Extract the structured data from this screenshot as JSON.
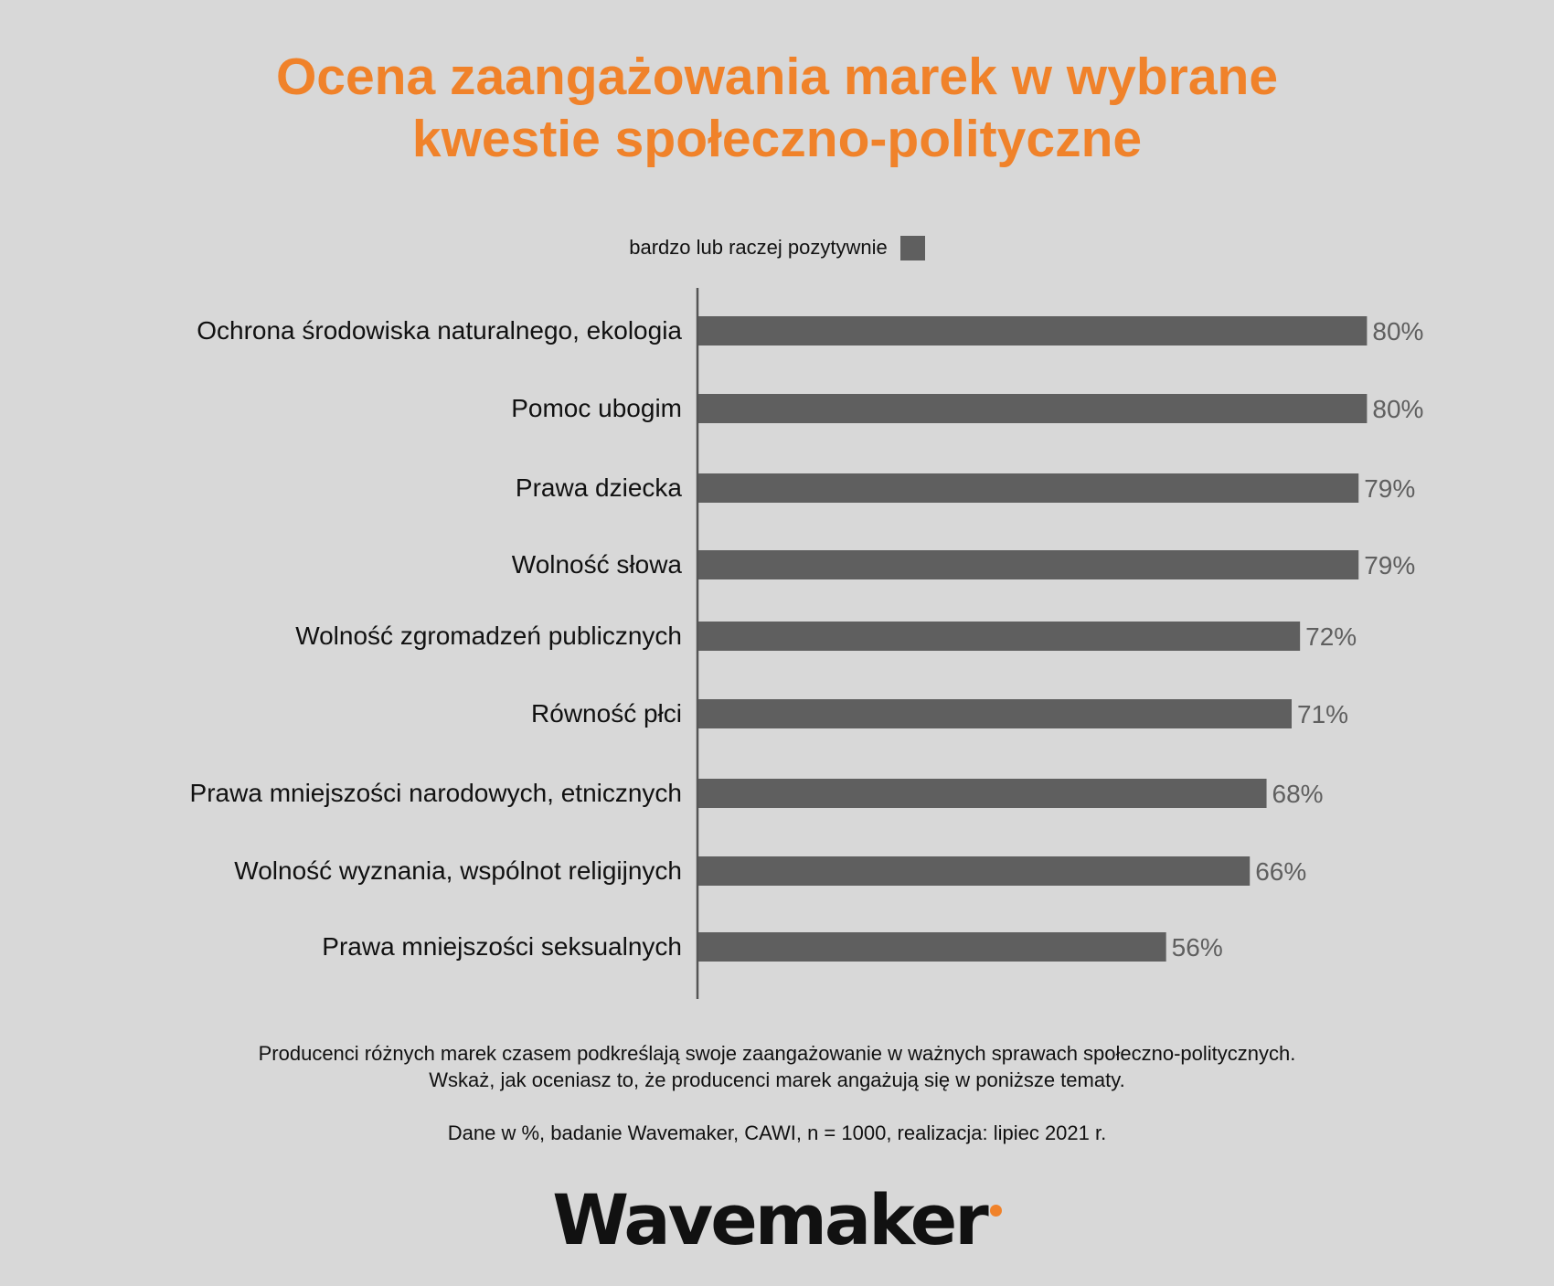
{
  "title": {
    "line1": "Ocena zaangażowania marek w wybrane",
    "line2": "kwestie społeczno-polityczne"
  },
  "legend": {
    "label": "bardzo lub raczej pozytywnie",
    "color": "#5f5f5f"
  },
  "colors": {
    "accent": "#f0822a",
    "bar": "#5f5f5f",
    "value_text": "#5f5f5f",
    "background": "#d8d8d8"
  },
  "chart_data": {
    "type": "bar",
    "orientation": "horizontal",
    "categories": [
      "Ochrona środowiska naturalnego, ekologia",
      "Pomoc ubogim",
      "Prawa dziecka",
      "Wolność słowa",
      "Wolność zgromadzeń publicznych",
      "Równość płci",
      "Prawa mniejszości narodowych, etnicznych",
      "Wolność wyznania, wspólnot religijnych",
      "Prawa mniejszości seksualnych"
    ],
    "series": [
      {
        "name": "bardzo lub raczej pozytywnie",
        "values": [
          80,
          80,
          79,
          79,
          72,
          71,
          68,
          66,
          56
        ]
      }
    ],
    "value_labels": [
      "80%",
      "80%",
      "79%",
      "79%",
      "72%",
      "71%",
      "68%",
      "66%",
      "56%"
    ],
    "unit": "%",
    "xlim": [
      0,
      100
    ],
    "grid": false,
    "legend_position": "top-center"
  },
  "footnote": {
    "line1": "Producenci różnych marek czasem podkreślają swoje zaangażowanie w ważnych sprawach społeczno-politycznych.",
    "line2": "Wskaż, jak oceniasz to, że producenci marek angażują się w poniższe tematy.",
    "source": "Dane w %, badanie Wavemaker, CAWI, n = 1000, realizacja: lipiec 2021 r."
  },
  "logo": {
    "text": "Wavemaker"
  }
}
